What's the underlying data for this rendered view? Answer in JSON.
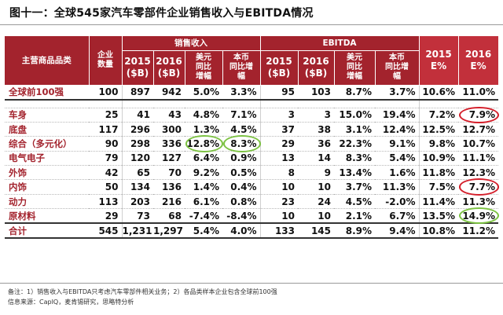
{
  "title": "图十一：全球545家汽车零部件企业销售收入与EBITDA情况",
  "header": {
    "category": "主营商品品类",
    "company_count": "企业\n数量",
    "group_sales": "销售收入",
    "group_ebitda": "EBITDA",
    "col_2015": "2015\n($B)",
    "col_2016": "2016\n($B)",
    "usd_yoy": "美元\n同比\n增幅",
    "local_yoy": "本币\n同比增\n幅",
    "e2015": "2015\nE%",
    "e2016": "2016\nE%"
  },
  "top_row": {
    "category": "全球前100强",
    "values": [
      "100",
      "897",
      "942",
      "5.0%",
      "3.3%",
      "95",
      "103",
      "8.7%",
      "3.7%",
      "10.6%",
      "11.0%"
    ]
  },
  "rows": [
    {
      "category": "车身",
      "values": [
        "25",
        "41",
        "43",
        "4.8%",
        "7.1%",
        "3",
        "3",
        "15.0%",
        "19.4%",
        "7.2%",
        "7.9%"
      ]
    },
    {
      "category": "底盘",
      "values": [
        "117",
        "296",
        "300",
        "1.3%",
        "4.5%",
        "37",
        "38",
        "3.1%",
        "12.4%",
        "12.5%",
        "12.7%"
      ]
    },
    {
      "category": "综合（多元化）",
      "values": [
        "90",
        "298",
        "336",
        "12.8%",
        "8.3%",
        "29",
        "36",
        "22.3%",
        "9.1%",
        "9.8%",
        "10.7%"
      ]
    },
    {
      "category": "电气电子",
      "values": [
        "79",
        "120",
        "127",
        "6.4%",
        "0.9%",
        "13",
        "14",
        "8.3%",
        "5.4%",
        "10.9%",
        "11.1%"
      ]
    },
    {
      "category": "外饰",
      "values": [
        "42",
        "65",
        "70",
        "9.2%",
        "0.5%",
        "8",
        "9",
        "13.4%",
        "1.6%",
        "11.8%",
        "12.3%"
      ]
    },
    {
      "category": "内饰",
      "values": [
        "50",
        "134",
        "136",
        "1.4%",
        "0.4%",
        "10",
        "10",
        "3.7%",
        "11.3%",
        "7.5%",
        "7.7%"
      ]
    },
    {
      "category": "动力",
      "values": [
        "113",
        "203",
        "216",
        "6.1%",
        "0.8%",
        "23",
        "24",
        "4.5%",
        "-2.0%",
        "11.4%",
        "11.3%"
      ]
    },
    {
      "category": "原材料",
      "values": [
        "29",
        "73",
        "68",
        "-7.4%",
        "-8.4%",
        "10",
        "10",
        "2.1%",
        "6.7%",
        "13.5%",
        "14.9%"
      ]
    }
  ],
  "total_row": {
    "category": "合计",
    "values": [
      "545",
      "1,231",
      "1,297",
      "5.4%",
      "4.0%",
      "133",
      "145",
      "8.9%",
      "9.4%",
      "10.8%",
      "11.2%"
    ]
  },
  "notes": {
    "line1": "备注：1）销售收入与EBITDA只考虑汽车零部件相关业务；2）各品类样本企业包含全球前100强",
    "line2": "信息来源：CapIQ，麦肯锡研究，思略特分析"
  },
  "highlight_colors": {
    "red": "#d41e2a",
    "green": "#7cc242",
    "header": "#a3232d"
  }
}
